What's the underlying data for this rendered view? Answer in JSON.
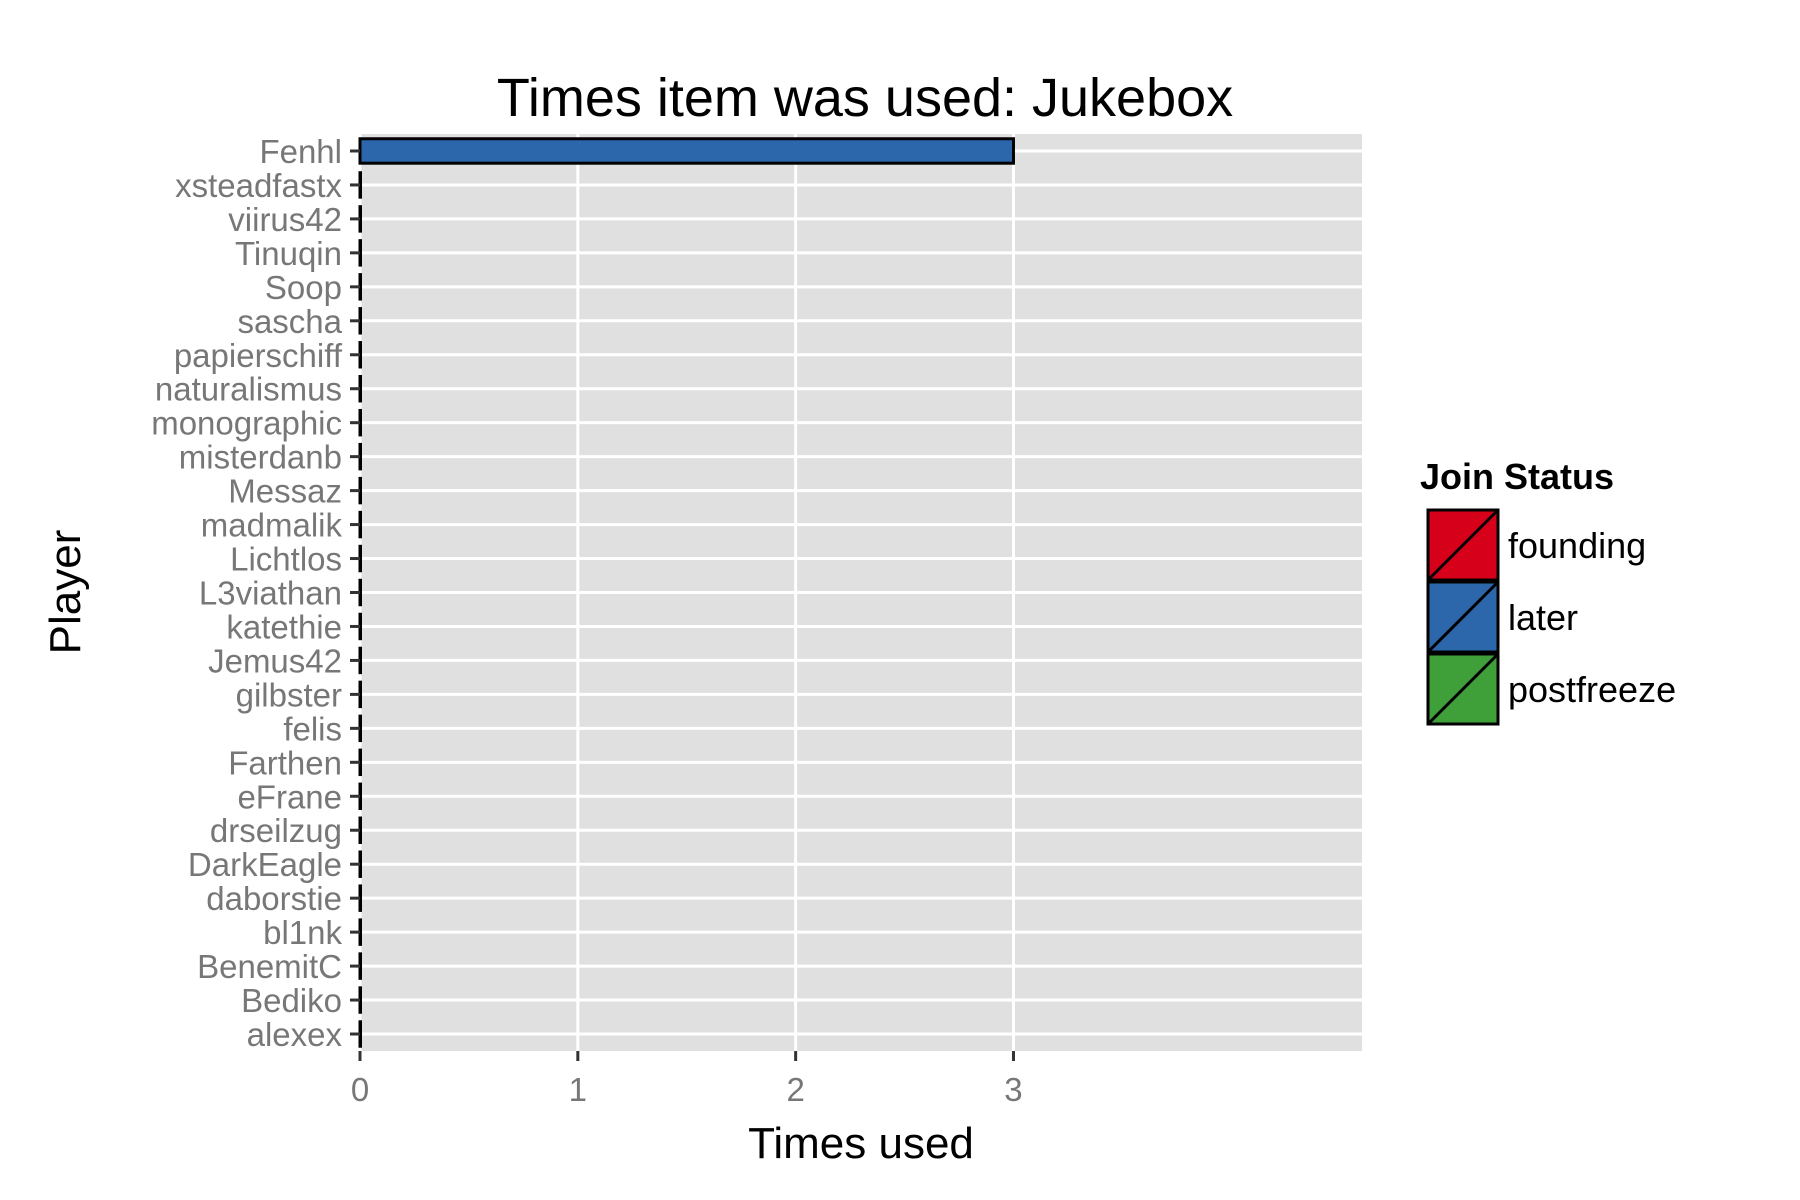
{
  "chart_data": {
    "type": "bar",
    "orientation": "horizontal",
    "title": "Times item was used: Jukebox",
    "xlabel": "Times used",
    "ylabel": "Player",
    "xlim": [
      0,
      4.6
    ],
    "xticks": [
      0,
      1,
      2,
      3
    ],
    "grid": true,
    "legend_position": "right",
    "categories": [
      "Fenhl",
      "xsteadfastx",
      "viirus42",
      "Tinuqin",
      "Soop",
      "sascha",
      "papierschiff",
      "naturalismus",
      "monographic",
      "misterdanb",
      "Messaz",
      "madmalik",
      "Lichtlos",
      "L3viathan",
      "katethie",
      "Jemus42",
      "gilbster",
      "felis",
      "Farthen",
      "eFrane",
      "drseilzug",
      "DarkEagle",
      "daborstie",
      "bl1nk",
      "BenemitC",
      "Bediko",
      "alexex"
    ],
    "values": [
      3,
      0,
      0,
      0,
      0,
      0,
      0,
      0,
      0,
      0,
      0,
      0,
      0,
      0,
      0,
      0,
      0,
      0,
      0,
      0,
      0,
      0,
      0,
      0,
      0,
      0,
      0
    ],
    "bar_status": [
      "later",
      "later",
      "later",
      "later",
      "later",
      "later",
      "later",
      "later",
      "later",
      "later",
      "later",
      "later",
      "later",
      "later",
      "later",
      "later",
      "later",
      "later",
      "later",
      "later",
      "later",
      "later",
      "later",
      "later",
      "later",
      "later",
      "later"
    ],
    "legend": {
      "title": "Join Status",
      "items": [
        {
          "label": "founding",
          "color": "#d7001a"
        },
        {
          "label": "later",
          "color": "#2c67ab"
        },
        {
          "label": "postfreeze",
          "color": "#3f9f39"
        }
      ]
    },
    "colors": {
      "panel_bg": "#e0e0e0",
      "grid": "#ffffff",
      "tick_text": "#777777",
      "bar_outline": "#000000"
    }
  }
}
